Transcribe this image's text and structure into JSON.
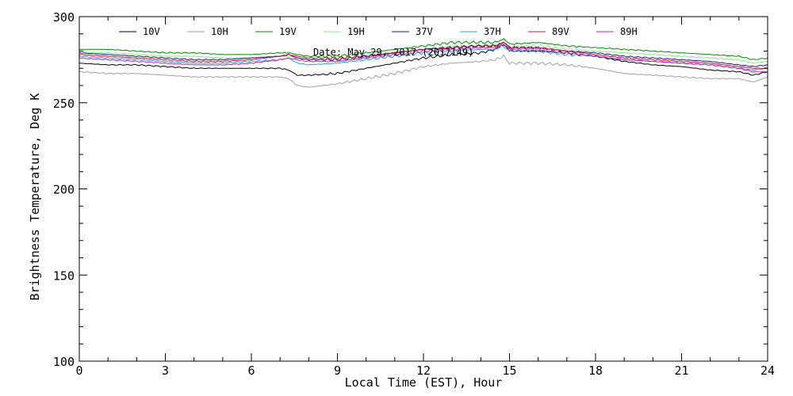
{
  "chart_data": {
    "type": "line",
    "title": "",
    "date_label": "Date: May 29, 2017 (2017149)",
    "xlabel": "Local Time (EST), Hour",
    "ylabel": "Brightness Temperature, Deg K",
    "xlim": [
      0,
      24
    ],
    "ylim": [
      100,
      300
    ],
    "xticks": [
      0,
      3,
      6,
      9,
      12,
      15,
      18,
      21,
      24
    ],
    "xtick_labels": [
      "0",
      "3",
      "6",
      "9",
      "12",
      "15",
      "18",
      "21",
      "24"
    ],
    "yticks": [
      100,
      150,
      200,
      250,
      300
    ],
    "ytick_labels": [
      "100",
      "150",
      "200",
      "250",
      "300"
    ],
    "grid": false,
    "legend_position": "top",
    "series": [
      {
        "name": "10V",
        "color": "#000000",
        "x": [
          0,
          1,
          2,
          3,
          4,
          5,
          6,
          7,
          7.3,
          7.6,
          8,
          9,
          10,
          11,
          12,
          13,
          14,
          14.5,
          14.8,
          15,
          16,
          17,
          18,
          19,
          20,
          21,
          22,
          23,
          23.5,
          24
        ],
        "y": [
          273,
          272,
          272,
          271,
          270,
          270,
          270,
          270,
          269,
          266,
          266,
          267,
          270,
          273,
          276,
          278,
          279,
          281,
          284,
          280,
          280,
          279,
          277,
          274,
          272,
          271,
          269,
          268,
          266,
          268
        ]
      },
      {
        "name": "10H",
        "color": "#a0a0a0",
        "x": [
          0,
          1,
          2,
          3,
          4,
          5,
          6,
          7,
          7.3,
          7.6,
          8,
          9,
          10,
          11,
          12,
          13,
          14,
          14.5,
          14.8,
          15,
          16,
          17,
          18,
          19,
          20,
          21,
          22,
          23,
          23.5,
          24
        ],
        "y": [
          268,
          267,
          267,
          266,
          265,
          265,
          265,
          265,
          264,
          260,
          259,
          261,
          264,
          267,
          271,
          273,
          274,
          275,
          277,
          273,
          273,
          272,
          270,
          267,
          266,
          265,
          264,
          264,
          262,
          265
        ]
      },
      {
        "name": "19V",
        "color": "#008c00",
        "x": [
          0,
          1,
          2,
          3,
          4,
          5,
          6,
          7,
          7.3,
          7.6,
          8,
          9,
          10,
          11,
          12,
          13,
          14,
          14.5,
          14.8,
          15,
          16,
          17,
          18,
          19,
          20,
          21,
          22,
          23,
          23.5,
          24
        ],
        "y": [
          281,
          281,
          280,
          279,
          279,
          278,
          278,
          279,
          279,
          278,
          277,
          277,
          279,
          281,
          283,
          285,
          285,
          285,
          287,
          284,
          285,
          283,
          282,
          281,
          280,
          279,
          278,
          277,
          275,
          276
        ]
      },
      {
        "name": "19H",
        "color": "#88e888",
        "x": [
          0,
          1,
          2,
          3,
          4,
          5,
          6,
          7,
          7.3,
          7.6,
          8,
          9,
          10,
          11,
          12,
          13,
          14,
          14.5,
          14.8,
          15,
          16,
          17,
          18,
          19,
          20,
          21,
          22,
          23,
          23.5,
          24
        ],
        "y": [
          279,
          279,
          278,
          277,
          277,
          276,
          276,
          277,
          277,
          276,
          275,
          275,
          277,
          279,
          281,
          283,
          283,
          283,
          285,
          282,
          283,
          281,
          280,
          279,
          278,
          277,
          276,
          275,
          273,
          274
        ]
      },
      {
        "name": "37V",
        "color": "#1a1a8c",
        "x": [
          0,
          1,
          2,
          3,
          4,
          5,
          6,
          7,
          7.3,
          7.6,
          8,
          9,
          10,
          11,
          12,
          13,
          14,
          14.5,
          14.8,
          15,
          16,
          17,
          18,
          19,
          20,
          21,
          22,
          23,
          23.5,
          24
        ],
        "y": [
          279,
          278,
          277,
          276,
          275,
          275,
          276,
          277,
          278,
          276,
          275,
          275,
          277,
          279,
          281,
          282,
          283,
          283,
          285,
          282,
          282,
          280,
          279,
          277,
          276,
          275,
          274,
          272,
          271,
          272
        ]
      },
      {
        "name": "37H",
        "color": "#2aa0e0",
        "x": [
          0,
          1,
          2,
          3,
          4,
          5,
          6,
          7,
          7.3,
          7.6,
          8,
          9,
          10,
          11,
          12,
          13,
          14,
          14.5,
          14.8,
          15,
          16,
          17,
          18,
          19,
          20,
          21,
          22,
          23,
          23.5,
          24
        ],
        "y": [
          277,
          276,
          275,
          274,
          273,
          273,
          274,
          275,
          276,
          273,
          272,
          273,
          275,
          277,
          279,
          280,
          281,
          281,
          283,
          280,
          280,
          278,
          277,
          275,
          274,
          273,
          272,
          270,
          269,
          270
        ]
      },
      {
        "name": "89V",
        "color": "#d01030",
        "x": [
          0,
          1,
          2,
          3,
          4,
          5,
          6,
          7,
          7.3,
          7.6,
          8,
          9,
          10,
          11,
          12,
          13,
          14,
          14.5,
          14.8,
          15,
          16,
          17,
          18,
          19,
          20,
          21,
          22,
          23,
          23.5,
          24
        ],
        "y": [
          278,
          277,
          276,
          275,
          274,
          274,
          275,
          277,
          278,
          277,
          276,
          276,
          277,
          279,
          281,
          282,
          283,
          283,
          285,
          282,
          282,
          280,
          278,
          276,
          275,
          274,
          273,
          271,
          270,
          270
        ]
      },
      {
        "name": "89H",
        "color": "#c020c0",
        "x": [
          0,
          1,
          2,
          3,
          4,
          5,
          6,
          7,
          7.3,
          7.6,
          8,
          9,
          10,
          11,
          12,
          13,
          14,
          14.5,
          14.8,
          15,
          16,
          17,
          18,
          19,
          20,
          21,
          22,
          23,
          23.5,
          24
        ],
        "y": [
          276,
          275,
          274,
          273,
          272,
          272,
          273,
          275,
          276,
          275,
          274,
          274,
          276,
          278,
          280,
          281,
          282,
          282,
          284,
          281,
          281,
          279,
          277,
          275,
          274,
          273,
          272,
          270,
          268,
          268
        ]
      }
    ]
  }
}
